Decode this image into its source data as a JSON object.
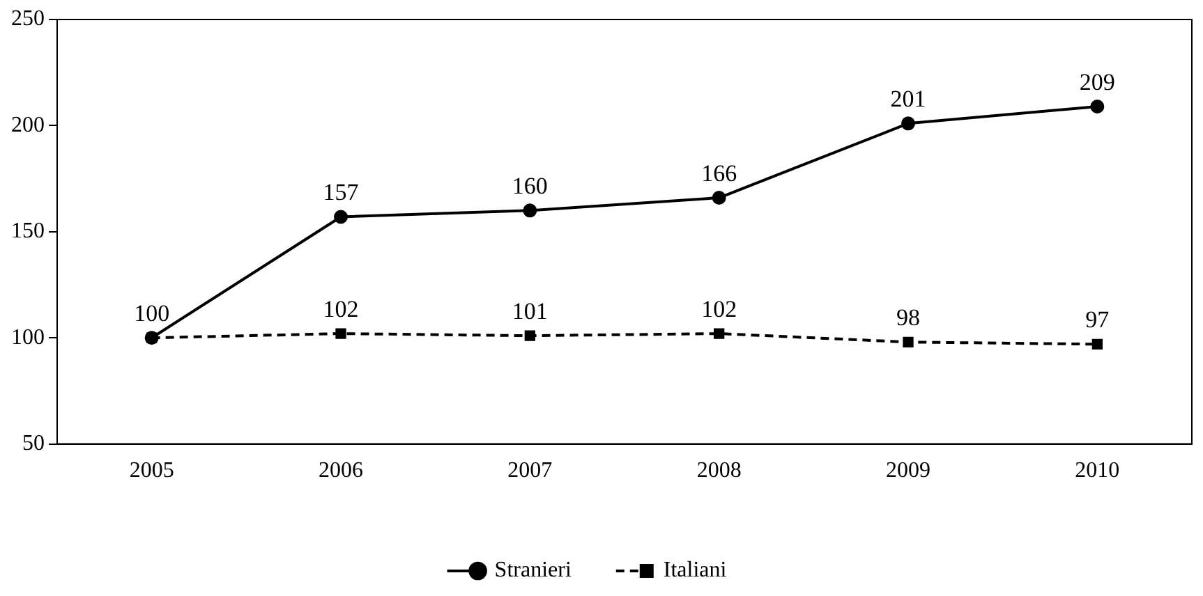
{
  "chart_data": {
    "type": "line",
    "categories": [
      "2005",
      "2006",
      "2007",
      "2008",
      "2009",
      "2010"
    ],
    "series": [
      {
        "name": "Stranieri",
        "color": "#000000",
        "values": [
          100,
          157,
          160,
          166,
          201,
          209
        ],
        "marker": "circle",
        "line_style": "solid",
        "value_labels": [
          "100",
          "157",
          "160",
          "166",
          "201",
          "209"
        ]
      },
      {
        "name": "Italiani",
        "color": "#000000",
        "values": [
          100,
          102,
          101,
          102,
          98,
          97
        ],
        "marker": "square",
        "line_style": "dashed",
        "value_labels": [
          null,
          "102",
          "101",
          "102",
          "98",
          "97"
        ]
      }
    ],
    "ylim": [
      50,
      250
    ],
    "yticks": [
      50,
      100,
      150,
      200,
      250
    ],
    "grid": false,
    "legend": "bottom"
  }
}
